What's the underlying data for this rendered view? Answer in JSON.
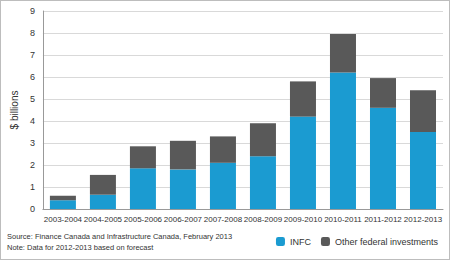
{
  "chart_data": {
    "type": "bar",
    "categories": [
      "2003-2004",
      "2004-2005",
      "2005-2006",
      "2006-2007",
      "2007-2008",
      "2008-2009",
      "2009-2010",
      "2010-2011",
      "2011-2012",
      "2012-2013"
    ],
    "series": [
      {
        "name": "INFC",
        "color": "#1b9bd1",
        "values": [
          0.4,
          0.65,
          1.85,
          1.8,
          2.1,
          2.4,
          4.2,
          6.2,
          4.6,
          3.5
        ]
      },
      {
        "name": "Other federal investments",
        "color": "#595959",
        "values": [
          0.2,
          0.9,
          1.0,
          1.3,
          1.2,
          1.5,
          1.6,
          1.75,
          1.35,
          1.9
        ]
      }
    ],
    "y_label": "$ billions",
    "ylim": [
      0,
      9
    ],
    "yticks": [
      0,
      1,
      2,
      3,
      4,
      5,
      6,
      7,
      8,
      9
    ],
    "annotations": [
      "Source: Finance Canada and Infrastructure Canada, February 2013",
      "Note: Data for 2012-2013 based on forecast"
    ],
    "stacked": true,
    "grid": true,
    "legend": "lower right"
  }
}
